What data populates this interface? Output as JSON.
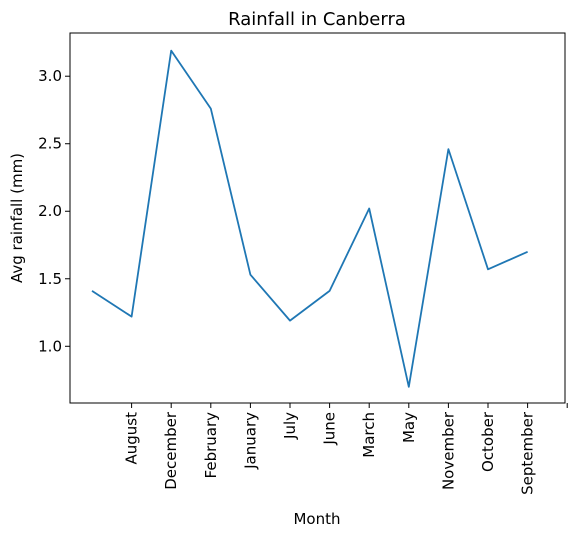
{
  "chart_data": {
    "type": "line",
    "title": "Rainfall in Canberra",
    "xlabel": "Month",
    "ylabel": "Avg rainfall (mm)",
    "categories": [
      "",
      "August",
      "December",
      "February",
      "January",
      "July",
      "June",
      "March",
      "May",
      "November",
      "October",
      "September"
    ],
    "series": [
      {
        "color": "#1f77b4",
        "values": [
          1.41,
          1.22,
          3.19,
          2.76,
          1.53,
          1.19,
          1.41,
          2.02,
          0.7,
          2.46,
          1.57,
          1.7
        ]
      }
    ],
    "x_tick_categories": [
      "August",
      "December",
      "February",
      "January",
      "July",
      "June",
      "March",
      "May",
      "November",
      "October",
      "September",
      ""
    ],
    "yticks": [
      1.0,
      1.5,
      2.0,
      2.5,
      3.0
    ],
    "ylim": [
      0.58,
      3.32
    ],
    "grid": false,
    "legend": "none"
  }
}
